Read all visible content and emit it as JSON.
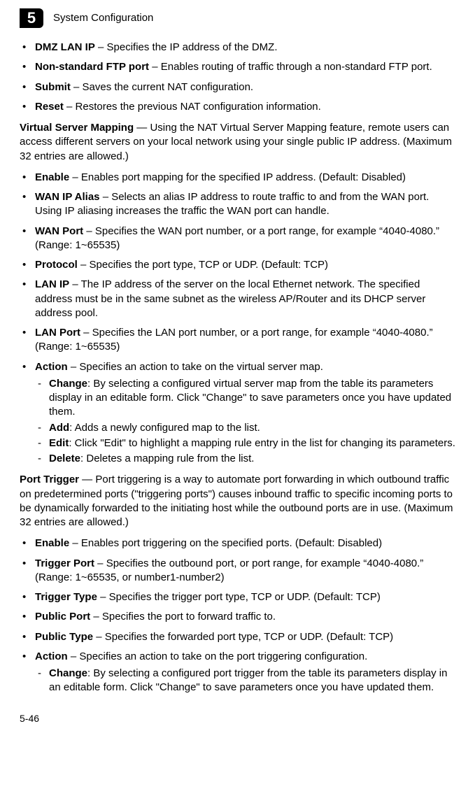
{
  "header": {
    "chapter_number": "5",
    "chapter_title": "System Configuration"
  },
  "items1": [
    {
      "term": "DMZ LAN IP",
      "desc": " – Specifies the IP address of the DMZ."
    },
    {
      "term": "Non-standard FTP port",
      "desc": " – Enables routing of traffic through a non-standard FTP port."
    },
    {
      "term": "Submit",
      "desc": " – Saves the current NAT configuration."
    },
    {
      "term": "Reset",
      "desc": " – Restores the previous NAT configuration information."
    }
  ],
  "section_vsm": {
    "title": "Virtual Server Mapping",
    "desc": " — Using the NAT Virtual Server Mapping feature, remote users can access different servers on your local network using your single public IP address. (Maximum 32 entries are allowed.)"
  },
  "items2": [
    {
      "term": "Enable",
      "desc": " – Enables port mapping for the specified IP address. (Default: Disabled)"
    },
    {
      "term": "WAN IP Alias",
      "desc": " – Selects an alias IP address to route traffic to and from the WAN port. Using IP aliasing increases the traffic the WAN port can handle."
    },
    {
      "term": "WAN Port",
      "desc": " – Specifies the WAN port number, or a port range, for example “4040-4080.” (Range: 1~65535)"
    },
    {
      "term": "Protocol",
      "desc": " – Specifies the port type, TCP or UDP. (Default: TCP)"
    },
    {
      "term": "LAN IP",
      "desc": " – The IP address of the server on the local Ethernet network. The specified address must be in the same subnet as the wireless AP/Router and its DHCP server address pool."
    },
    {
      "term": "LAN Port",
      "desc": " – Specifies the LAN port number, or a port range, for example “4040-4080.” (Range: 1~65535)"
    },
    {
      "term": "Action",
      "desc": " – Specifies an action to take on the virtual server map."
    }
  ],
  "actions1": [
    {
      "term": "Change",
      "desc": ": By selecting a configured virtual server map from the table its parameters display in an editable form. Click \"Change\" to save parameters once you have updated them."
    },
    {
      "term": "Add",
      "desc": ": Adds a newly configured map to the list."
    },
    {
      "term": "Edit",
      "desc": ": Click \"Edit\" to highlight a mapping rule entry in the list for changing its parameters."
    },
    {
      "term": "Delete",
      "desc": ": Deletes a mapping rule from the list."
    }
  ],
  "section_pt": {
    "title": "Port Trigger",
    "desc": " — Port triggering is a way to automate port forwarding in which outbound traffic on predetermined ports (\"triggering ports\") causes inbound traffic to specific incoming ports to be dynamically forwarded to the initiating host while the outbound ports are in use. (Maximum 32 entries are allowed.)"
  },
  "items3": [
    {
      "term": "Enable",
      "desc": " – Enables port triggering on the specified ports. (Default: Disabled)"
    },
    {
      "term": "Trigger Port",
      "desc": " – Specifies the outbound port, or port range, for example “4040-4080.” (Range: 1~65535, or number1-number2)"
    },
    {
      "term": "Trigger Type",
      "desc": " – Specifies the trigger port type, TCP or UDP. (Default: TCP)"
    },
    {
      "term": "Public Port",
      "desc": " – Specifies the port to forward traffic to."
    },
    {
      "term": "Public Type",
      "desc": " – Specifies the forwarded port type, TCP or UDP. (Default: TCP)"
    },
    {
      "term": "Action",
      "desc": " – Specifies an action to take on the port triggering configuration."
    }
  ],
  "actions2": [
    {
      "term": "Change",
      "desc": ": By selecting a configured port trigger from the table its parameters display in an editable form. Click \"Change\" to save parameters once you have updated them."
    }
  ],
  "page_number": "5-46"
}
